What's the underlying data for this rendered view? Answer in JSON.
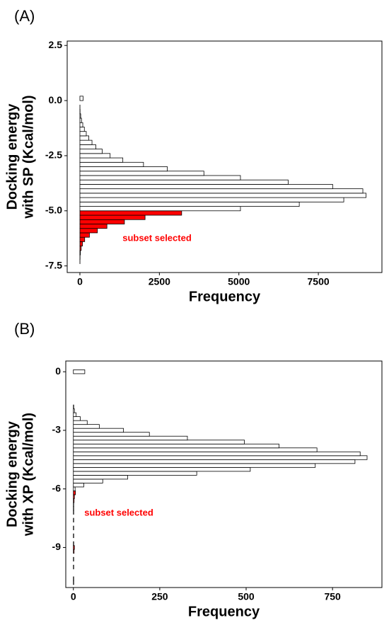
{
  "chart_data": [
    {
      "type": "histogram",
      "orientation": "horizontal",
      "panel_label": "(A)",
      "xlabel": "Frequency",
      "ylabel": [
        "Docking energy",
        "with SP (Kcal/mol)"
      ],
      "bins": [
        -7.4,
        -7.2,
        -7.0,
        -6.8,
        -6.6,
        -6.4,
        -6.2,
        -6.0,
        -5.8,
        -5.6,
        -5.4,
        -5.2,
        -5.0,
        -4.8,
        -4.6,
        -4.4,
        -4.2,
        -4.0,
        -3.8,
        -3.6,
        -3.4,
        -3.2,
        -3.0,
        -2.8,
        -2.6,
        -2.4,
        -2.2,
        -2.0,
        -1.8,
        -1.6,
        -1.4,
        -1.2,
        -1.0,
        -0.8,
        -0.6,
        -0.4,
        -0.2,
        0.0,
        0.2,
        0.4,
        0.6,
        0.8,
        1.0,
        1.2,
        1.4,
        1.6,
        1.8,
        2.0,
        2.2
      ],
      "values": [
        2,
        5,
        15,
        40,
        80,
        150,
        300,
        550,
        850,
        1400,
        2050,
        3200,
        5050,
        6900,
        8300,
        9000,
        8900,
        7950,
        6550,
        5050,
        3900,
        2750,
        2000,
        1350,
        950,
        700,
        500,
        380,
        280,
        200,
        140,
        90,
        50,
        25,
        5,
        2,
        0,
        100,
        0,
        0,
        0,
        0,
        0,
        0,
        0,
        0,
        0,
        0
      ],
      "color": "#ffffff",
      "highlight": {
        "below": -5.0,
        "color": "#ff0000",
        "label": "subset selected"
      },
      "xlim": [
        -400,
        9500
      ],
      "xticks": [
        0,
        2500,
        5000,
        7500
      ],
      "ylim": [
        -7.8,
        2.7
      ],
      "yticks": [
        2.5,
        {
          "value": 0,
          "label": "0.0"
        },
        -2.5,
        {
          "value": -5,
          "label": "-5.0"
        },
        -7.5
      ]
    },
    {
      "type": "histogram",
      "orientation": "horizontal",
      "panel_label": "(B)",
      "xlabel": "Frequency",
      "ylabel": [
        "Docking energy",
        "with XP (Kcal/mol)"
      ],
      "bins": [
        -10.9,
        -10.7,
        -10.5,
        -10.3,
        -10.1,
        -9.9,
        -9.7,
        -9.5,
        -9.3,
        -9.1,
        -8.9,
        -8.7,
        -8.5,
        -8.3,
        -8.1,
        -7.9,
        -7.7,
        -7.5,
        -7.3,
        -7.1,
        -6.9,
        -6.7,
        -6.5,
        -6.3,
        -6.1,
        -5.9,
        -5.7,
        -5.5,
        -5.3,
        -5.1,
        -4.9,
        -4.7,
        -4.5,
        -4.3,
        -4.1,
        -3.9,
        -3.7,
        -3.5,
        -3.3,
        -3.1,
        -2.9,
        -2.7,
        -2.5,
        -2.3,
        -2.1,
        -1.9,
        -1.7,
        -1.5,
        -1.3,
        -1.1,
        -0.9,
        -0.7,
        -0.5,
        -0.3,
        -0.1,
        0.1
      ],
      "values": [
        1,
        1,
        0,
        0,
        1,
        0,
        1,
        0,
        2,
        3,
        1,
        0,
        1,
        0,
        1,
        0,
        1,
        0,
        1,
        1,
        1,
        2,
        3,
        6,
        5,
        30,
        85,
        157,
        357,
        512,
        700,
        815,
        850,
        830,
        705,
        595,
        495,
        330,
        220,
        145,
        75,
        40,
        20,
        8,
        3,
        1,
        0,
        0,
        0,
        0,
        0,
        0,
        0,
        0,
        33
      ],
      "color": "#ffffff",
      "highlight": {
        "below": -6.1,
        "color": "#ff0000",
        "label": "subset selected"
      },
      "xlim": [
        -22,
        893
      ],
      "xticks": [
        0,
        250,
        500,
        750
      ],
      "ylim": [
        -11.05,
        0.55
      ],
      "yticks": [
        0,
        -3,
        -6,
        -9
      ]
    }
  ]
}
